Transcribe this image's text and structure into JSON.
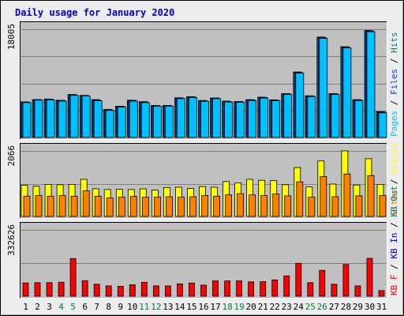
{
  "title": "Daily usage for January 2020",
  "colors": {
    "background": "#ececec",
    "plot_bg": "#c0c0c0",
    "title": "#0000cc",
    "pages": "#00c0ff",
    "files": "#0040ff",
    "hits": "#008080",
    "sites": "#ff8000",
    "visits": "#ffff00",
    "kb_in": "#0000ff",
    "kb_out": "#008080",
    "kbytes": "#ff0000",
    "weekend_day": "#008040",
    "weekday": "#000000"
  },
  "chart_data": [
    {
      "type": "bar",
      "panel": "top",
      "ymax_label": "18005",
      "ymax": 18005,
      "legend": [
        {
          "text": "Pages",
          "color_key": "pages"
        },
        {
          "text": "Files",
          "color_key": "files"
        },
        {
          "text": "Hits",
          "color_key": "hits"
        }
      ],
      "series": [
        {
          "name": "Hits",
          "color_key": "hits",
          "values": [
            5920,
            6300,
            6400,
            6190,
            7150,
            7000,
            6300,
            4660,
            5200,
            6200,
            5950,
            5320,
            5320,
            6600,
            6780,
            6150,
            6570,
            6050,
            5970,
            6300,
            6700,
            6250,
            7300,
            10900,
            6940,
            16700,
            7300,
            15100,
            6300,
            17800,
            4300
          ]
        },
        {
          "name": "Files",
          "color_key": "files",
          "values": [
            5900,
            6300,
            6350,
            6150,
            7100,
            6950,
            6200,
            4600,
            5150,
            6150,
            5900,
            5300,
            5300,
            6550,
            6750,
            6100,
            6550,
            6000,
            5950,
            6250,
            6650,
            6200,
            7250,
            10800,
            6900,
            16600,
            7250,
            15000,
            6250,
            17700,
            4200
          ]
        },
        {
          "name": "Pages",
          "color_key": "pages",
          "values": [
            5800,
            6200,
            6250,
            6050,
            7000,
            6900,
            6100,
            4500,
            5050,
            6050,
            5800,
            5200,
            5200,
            6450,
            6650,
            6000,
            6450,
            5900,
            5850,
            6150,
            6550,
            6100,
            7150,
            10700,
            6800,
            16500,
            7150,
            14900,
            6150,
            17600,
            4100
          ]
        }
      ]
    },
    {
      "type": "bar",
      "panel": "middle",
      "ymax_label": "2066",
      "ymax": 2066,
      "legend": [
        {
          "text": "Sites",
          "color_key": "sites"
        },
        {
          "text": "Visits",
          "color_key": "visits"
        }
      ],
      "series": [
        {
          "name": "Visits",
          "color_key": "visits",
          "values": [
            980,
            950,
            1010,
            1000,
            1010,
            1170,
            870,
            850,
            860,
            850,
            870,
            830,
            910,
            920,
            880,
            940,
            920,
            1100,
            1060,
            1170,
            1140,
            1130,
            1000,
            1540,
            930,
            1750,
            1020,
            2066,
            990,
            1820,
            1010
          ]
        },
        {
          "name": "Sites",
          "color_key": "sites",
          "values": [
            640,
            660,
            640,
            660,
            640,
            810,
            640,
            580,
            610,
            630,
            610,
            610,
            620,
            610,
            620,
            660,
            640,
            680,
            720,
            680,
            660,
            710,
            650,
            1090,
            610,
            1260,
            620,
            1340,
            650,
            1290,
            660
          ]
        }
      ]
    },
    {
      "type": "bar",
      "panel": "bottom",
      "ymax_label": "332626",
      "ymax": 332626,
      "legend": [
        {
          "text": "KB F",
          "color_key": "kbytes"
        },
        {
          "text": "KB In",
          "color_key": "kb_in"
        },
        {
          "text": "KB Out",
          "color_key": "kb_out"
        }
      ],
      "series": [
        {
          "name": "KB F",
          "color_key": "kbytes",
          "values": [
            67000,
            68000,
            68000,
            70000,
            189000,
            78000,
            60000,
            52000,
            50000,
            58000,
            70000,
            52000,
            52000,
            62000,
            66000,
            56000,
            77000,
            77000,
            77000,
            72000,
            73000,
            82000,
            102000,
            165000,
            68000,
            130000,
            60000,
            159000,
            52000,
            190000,
            28000
          ]
        }
      ]
    }
  ],
  "x_axis": {
    "days": [
      "1",
      "2",
      "3",
      "4",
      "5",
      "6",
      "7",
      "8",
      "9",
      "10",
      "11",
      "12",
      "13",
      "14",
      "15",
      "16",
      "17",
      "18",
      "19",
      "20",
      "21",
      "22",
      "23",
      "24",
      "25",
      "26",
      "27",
      "28",
      "29",
      "30",
      "31"
    ],
    "weekend_indices": [
      3,
      4,
      10,
      11,
      17,
      18,
      24,
      25
    ]
  }
}
